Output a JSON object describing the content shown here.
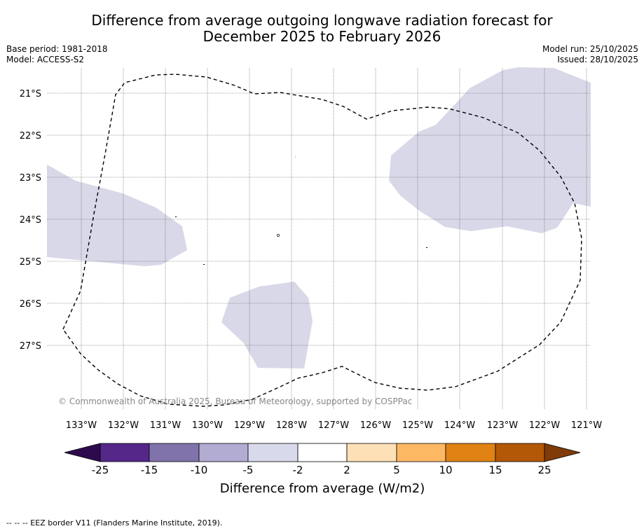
{
  "title_line1": "Difference from average outgoing longwave radiation forecast for",
  "title_line2": "December 2025 to February 2026",
  "base_period": "Base period: 1981-2018",
  "model": "Model: ACCESS-S2",
  "model_run": "Model run: 25/10/2025",
  "issued": "Issued: 28/10/2025",
  "map": {
    "lat_labels": [
      "21°S",
      "22°S",
      "23°S",
      "24°S",
      "25°S",
      "26°S",
      "27°S"
    ],
    "lon_labels": [
      "133°W",
      "132°W",
      "131°W",
      "130°W",
      "129°W",
      "128°W",
      "127°W",
      "126°W",
      "125°W",
      "124°W",
      "123°W",
      "122°W",
      "121°W"
    ],
    "copyright": "© Commonwealth of Australia 2025, Bureau of Meteorology, supported by COSPPac",
    "fill_color": "#d8d8e8"
  },
  "colorbar": {
    "tick_labels": [
      "-25",
      "-15",
      "-10",
      "-5",
      "-2",
      "2",
      "5",
      "10",
      "15",
      "25"
    ],
    "colors": [
      "#2d0a4e",
      "#542788",
      "#8073ac",
      "#b2abd2",
      "#d8daeb",
      "#ffffff",
      "#fee0b6",
      "#fdb863",
      "#e08214",
      "#b35806",
      "#7f3b08"
    ],
    "label": "Difference from average (W/m2)"
  },
  "footer": "--  --  -- EEZ border V11 (Flanders Marine Institute, 2019)."
}
